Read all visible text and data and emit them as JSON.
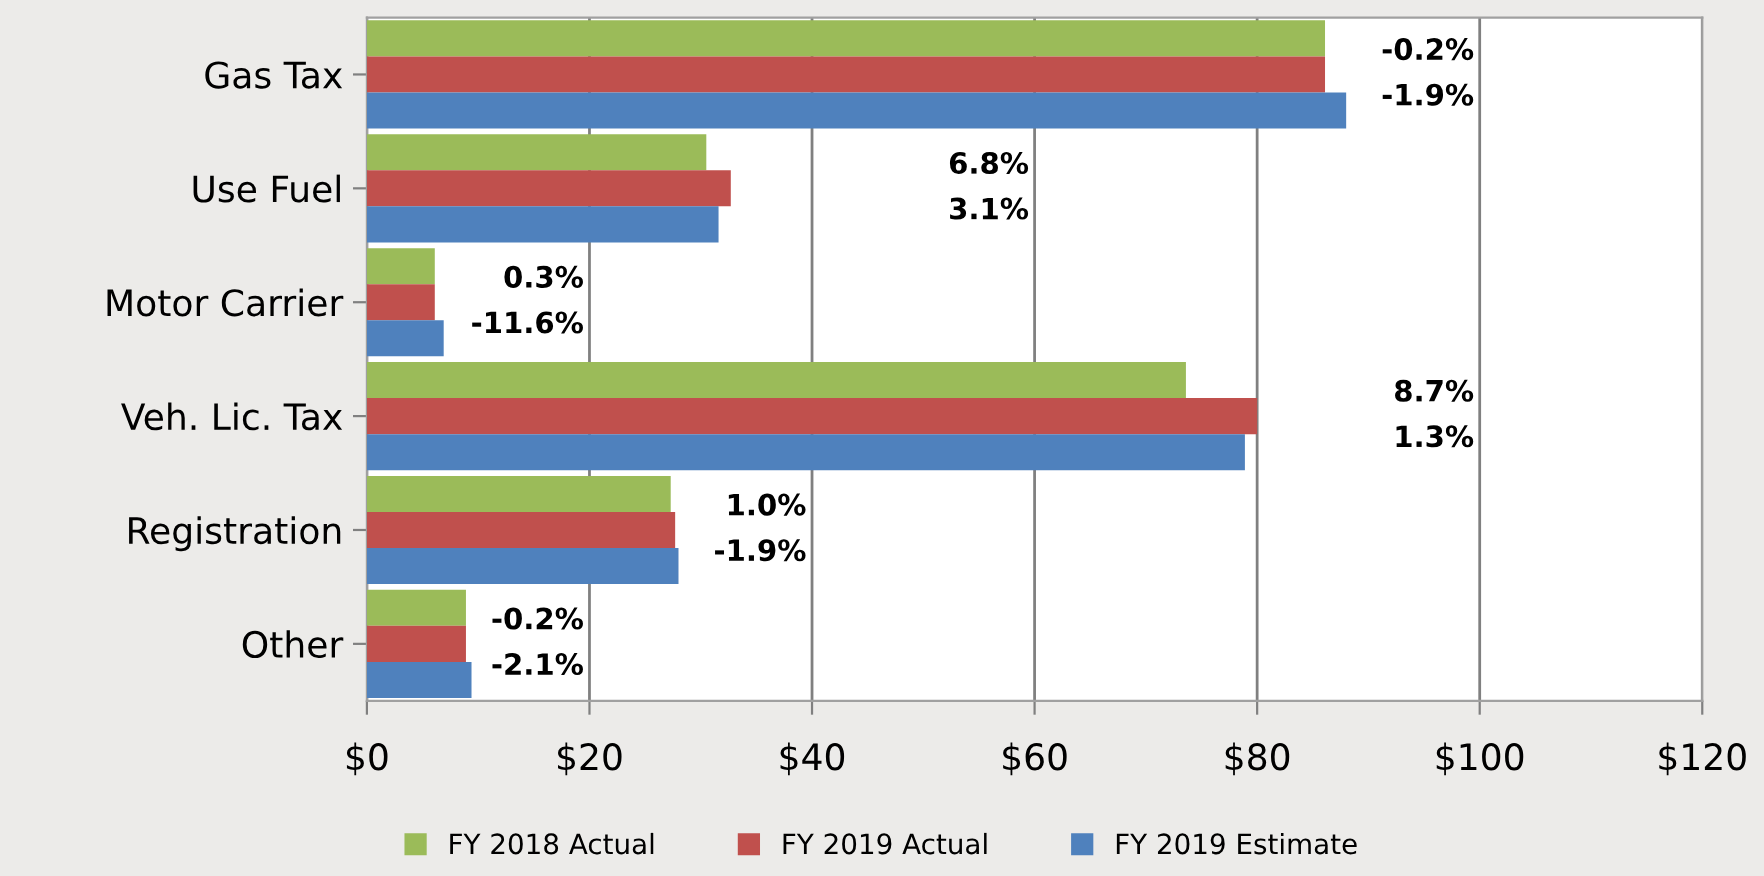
{
  "chart_data": {
    "type": "bar",
    "orientation": "horizontal",
    "categories": [
      "Gas Tax",
      "Use Fuel",
      "Motor Carrier",
      "Veh. Lic. Tax",
      "Registration",
      "Other"
    ],
    "series": [
      {
        "name": "FY 2018 Actual",
        "color": "#9bbb59",
        "values": [
          86.1,
          30.5,
          6.1,
          73.6,
          27.3,
          8.9
        ]
      },
      {
        "name": "FY 2019 Actual",
        "color": "#c0504d",
        "values": [
          86.1,
          32.7,
          6.1,
          80.0,
          27.7,
          8.9
        ]
      },
      {
        "name": "FY 2019 Estimate",
        "color": "#4f81bd",
        "values": [
          88.0,
          31.6,
          6.9,
          78.9,
          28.0,
          9.4
        ]
      }
    ],
    "xlim": [
      0,
      120
    ],
    "xticks": [
      {
        "value": 0,
        "label": "$0"
      },
      {
        "value": 20,
        "label": "$20"
      },
      {
        "value": 40,
        "label": "$40"
      },
      {
        "value": 60,
        "label": "$60"
      },
      {
        "value": 80,
        "label": "$80"
      },
      {
        "value": 100,
        "label": "$100"
      },
      {
        "value": 120,
        "label": "$120"
      }
    ],
    "grid": "x",
    "legend": "bottom",
    "annotations": [
      "-0.2%",
      "-1.9%",
      "6.8%",
      "3.1%",
      "0.3%",
      "-11.6%",
      "8.7%",
      "1.3%",
      "1.0%",
      "-1.9%",
      "-0.2%",
      "-2.1%"
    ]
  }
}
